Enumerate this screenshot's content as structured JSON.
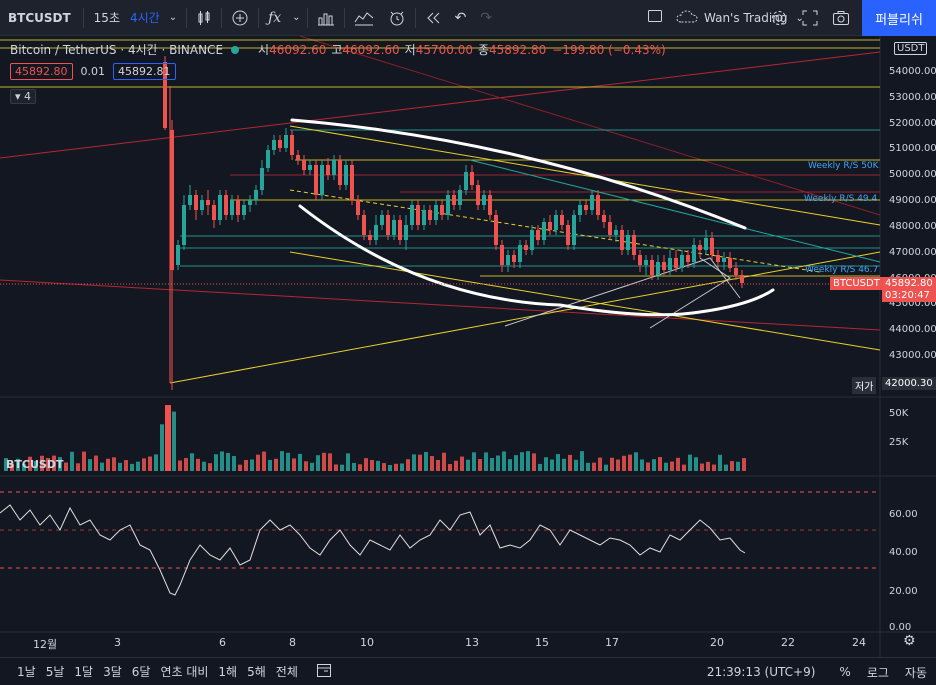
{
  "toolbar": {
    "symbol": "BTCUSDT",
    "intervals": [
      "15초",
      "4시간"
    ],
    "layout_name": "Wan's Trading",
    "publish_label": "퍼블리쉬"
  },
  "legend": {
    "title": "Bitcoin / TetherUS · 4시간 · BINANCE",
    "open_label": "시",
    "open": "46092.60",
    "high_label": "고",
    "high": "46092.60",
    "low_label": "저",
    "low": "45700.00",
    "close_label": "종",
    "close": "45892.80",
    "change": "−199.80 (−0.43%)",
    "bid": "45892.80",
    "spread": "0.01",
    "ask": "45892.81",
    "indicator_count": "4"
  },
  "price_axis": {
    "currency": "USDT",
    "ticks": [
      "54000.00",
      "53000.00",
      "52000.00",
      "51000.00",
      "50000.00",
      "49000.00",
      "48000.00",
      "47000.00",
      "46000.00",
      "45000.00",
      "44000.00",
      "43000.00"
    ],
    "last_price": "45892.80",
    "countdown": "03:20:47",
    "last_symbol": "BTCUSDT",
    "low_label": "저가",
    "low_value": "42000.30"
  },
  "volume_axis": {
    "ticks": [
      "50K",
      "25K"
    ],
    "title": "BTCUSDT"
  },
  "rsi_axis": {
    "ticks": [
      "60.00",
      "40.00",
      "20.00",
      "0.00"
    ]
  },
  "time_axis": {
    "ticks": [
      "12월",
      "3",
      "6",
      "8",
      "10",
      "13",
      "15",
      "17",
      "20",
      "22",
      "24"
    ]
  },
  "annotations": {
    "weekly_50k": "Weekly R/S 50K",
    "weekly_494": "Weekly R/S 49.4",
    "weekly_467": "Weekly R/S 46.7"
  },
  "bottom_bar": {
    "ranges": [
      "1날",
      "5날",
      "1달",
      "3달",
      "6달",
      "연초 대비",
      "1해",
      "5해",
      "전체"
    ],
    "clock": "21:39:13 (UTC+9)",
    "percent": "%",
    "log": "로그",
    "auto": "자동"
  },
  "colors": {
    "up": "#26a69a",
    "down": "#ef5350",
    "accent": "#2962ff",
    "yellow": "#e6d12d",
    "background": "#131722"
  }
}
